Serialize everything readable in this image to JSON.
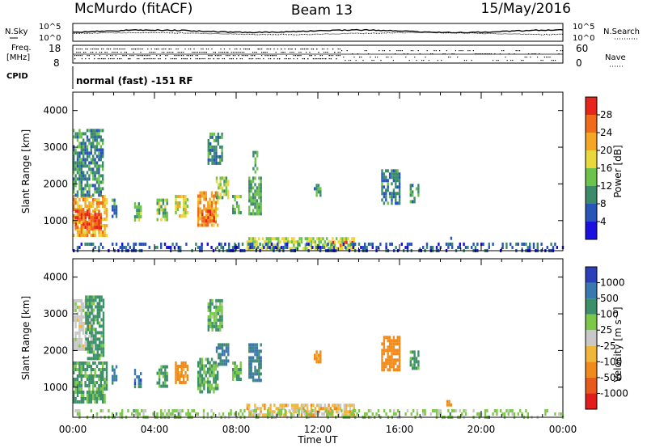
{
  "header": {
    "station": "McMurdo (fitACF)",
    "beam": "Beam 13",
    "date": "15/May/2016"
  },
  "top_strip": {
    "nsky_label": "N.Sky",
    "nsearch_label": "N.Search",
    "noise_ticks_left": [
      "10^5",
      "10^0"
    ],
    "noise_ticks_right": [
      "10^5",
      "10^0"
    ],
    "freq_label_line1": "Freq.",
    "freq_label_line2": "[MHz]",
    "freq_ticks": [
      "18",
      "8"
    ],
    "nave_label": "Nave",
    "nave_ticks": [
      "60",
      "0"
    ],
    "cpid_label": "CPID",
    "cpid_text": "normal (fast) -151 RF"
  },
  "axes": {
    "x_ticks": [
      "00:00",
      "04:00",
      "08:00",
      "12:00",
      "16:00",
      "20:00",
      "00:00"
    ],
    "x_label": "Time UT",
    "y_label": "Slant Range [km]",
    "y_ticks": [
      "1000",
      "2000",
      "3000",
      "4000"
    ]
  },
  "colorbars": {
    "power": {
      "label": "Power [dB]",
      "ticks": [
        "4",
        "8",
        "12",
        "16",
        "20",
        "24",
        "28"
      ],
      "colors": [
        "#1a10e0",
        "#2a55b8",
        "#3b8a6a",
        "#6cc24a",
        "#e8d83a",
        "#f5a623",
        "#f06a1a",
        "#e8251c"
      ]
    },
    "velocity": {
      "label": "Velocity [m s⁻¹]",
      "ticks": [
        "1000",
        "500",
        "100",
        "25",
        "-25",
        "-100",
        "-500",
        "-1000"
      ],
      "colors": [
        "#2a3fb8",
        "#3a78b0",
        "#3d8f6a",
        "#7cc94a",
        "#c8c8c8",
        "#f0b63a",
        "#f08a1a",
        "#e85a1c",
        "#e21b1b"
      ]
    }
  },
  "chart_data": [
    {
      "type": "heatmap",
      "panel": "power",
      "xlabel": "Time UT",
      "ylabel": "Slant Range [km]",
      "xlim_hours": [
        0,
        24
      ],
      "ylim_km": [
        180,
        4500
      ],
      "colorbar_label": "Power [dB]",
      "colorbar_range": [
        0,
        32
      ],
      "regions": [
        {
          "t": [
            0.0,
            1.7
          ],
          "r": [
            600,
            1700
          ],
          "value": 22
        },
        {
          "t": [
            0.1,
            1.4
          ],
          "r": [
            800,
            1300
          ],
          "value": 27
        },
        {
          "t": [
            0.0,
            1.5
          ],
          "r": [
            1700,
            3500
          ],
          "value": 10
        },
        {
          "t": [
            1.9,
            2.1
          ],
          "r": [
            1100,
            1600
          ],
          "value": 9
        },
        {
          "t": [
            3.0,
            3.3
          ],
          "r": [
            1000,
            1500
          ],
          "value": 13
        },
        {
          "t": [
            4.1,
            4.6
          ],
          "r": [
            1000,
            1600
          ],
          "value": 14
        },
        {
          "t": [
            5.0,
            5.6
          ],
          "r": [
            1100,
            1700
          ],
          "value": 18
        },
        {
          "t": [
            6.1,
            7.1
          ],
          "r": [
            900,
            1800
          ],
          "value": 22
        },
        {
          "t": [
            6.3,
            6.9
          ],
          "r": [
            1000,
            1300
          ],
          "value": 27
        },
        {
          "t": [
            7.0,
            7.6
          ],
          "r": [
            1600,
            2200
          ],
          "value": 15
        },
        {
          "t": [
            6.6,
            7.3
          ],
          "r": [
            2600,
            3400
          ],
          "value": 10
        },
        {
          "t": [
            7.8,
            8.2
          ],
          "r": [
            1200,
            1700
          ],
          "value": 13
        },
        {
          "t": [
            8.6,
            9.2
          ],
          "r": [
            1200,
            2200
          ],
          "value": 12
        },
        {
          "t": [
            8.8,
            9.0
          ],
          "r": [
            2300,
            2900
          ],
          "value": 12
        },
        {
          "t": [
            8.5,
            13.8
          ],
          "r": [
            250,
            550
          ],
          "value": 16
        },
        {
          "t": [
            12.6,
            13.7
          ],
          "r": [
            300,
            450
          ],
          "value": 26
        },
        {
          "t": [
            11.8,
            12.1
          ],
          "r": [
            1700,
            2000
          ],
          "value": 11
        },
        {
          "t": [
            15.1,
            16.0
          ],
          "r": [
            1500,
            2400
          ],
          "value": 9
        },
        {
          "t": [
            16.5,
            16.9
          ],
          "r": [
            1500,
            2000
          ],
          "value": 11
        },
        {
          "t": [
            18.2,
            18.5
          ],
          "r": [
            500,
            650
          ],
          "value": 10
        },
        {
          "t": [
            0.0,
            24.0
          ],
          "r": [
            200,
            400
          ],
          "value": 6
        }
      ]
    },
    {
      "type": "heatmap",
      "panel": "velocity",
      "xlabel": "Time UT",
      "ylabel": "Slant Range [km]",
      "xlim_hours": [
        0,
        24
      ],
      "ylim_km": [
        180,
        4500
      ],
      "colorbar_label": "Velocity [m s⁻¹]",
      "colorbar_range": [
        -1000,
        1000
      ],
      "regions": [
        {
          "t": [
            0.0,
            1.7
          ],
          "r": [
            600,
            1700
          ],
          "value": 150
        },
        {
          "t": [
            0.0,
            1.0
          ],
          "r": [
            2000,
            3400
          ],
          "value": 0
        },
        {
          "t": [
            0.6,
            1.5
          ],
          "r": [
            1800,
            3500
          ],
          "value": 200
        },
        {
          "t": [
            1.9,
            2.1
          ],
          "r": [
            1100,
            1600
          ],
          "value": 600
        },
        {
          "t": [
            3.0,
            3.3
          ],
          "r": [
            1000,
            1500
          ],
          "value": 700
        },
        {
          "t": [
            4.1,
            4.6
          ],
          "r": [
            1000,
            1600
          ],
          "value": 150
        },
        {
          "t": [
            5.0,
            5.6
          ],
          "r": [
            1100,
            1700
          ],
          "value": -200
        },
        {
          "t": [
            6.1,
            7.1
          ],
          "r": [
            900,
            1800
          ],
          "value": 120
        },
        {
          "t": [
            7.0,
            7.6
          ],
          "r": [
            1600,
            2200
          ],
          "value": 600
        },
        {
          "t": [
            6.6,
            7.3
          ],
          "r": [
            2600,
            3400
          ],
          "value": 80
        },
        {
          "t": [
            7.8,
            8.2
          ],
          "r": [
            1200,
            1700
          ],
          "value": 120
        },
        {
          "t": [
            8.6,
            9.2
          ],
          "r": [
            1200,
            2200
          ],
          "value": 600
        },
        {
          "t": [
            8.5,
            13.8
          ],
          "r": [
            250,
            550
          ],
          "value": -60
        },
        {
          "t": [
            11.8,
            12.1
          ],
          "r": [
            1700,
            2000
          ],
          "value": -200
        },
        {
          "t": [
            15.1,
            16.0
          ],
          "r": [
            1500,
            2400
          ],
          "value": -300
        },
        {
          "t": [
            16.5,
            16.9
          ],
          "r": [
            1500,
            2000
          ],
          "value": 150
        },
        {
          "t": [
            18.2,
            18.5
          ],
          "r": [
            500,
            650
          ],
          "value": -400
        },
        {
          "t": [
            0.0,
            24.0
          ],
          "r": [
            200,
            400
          ],
          "value": 50
        }
      ]
    }
  ]
}
